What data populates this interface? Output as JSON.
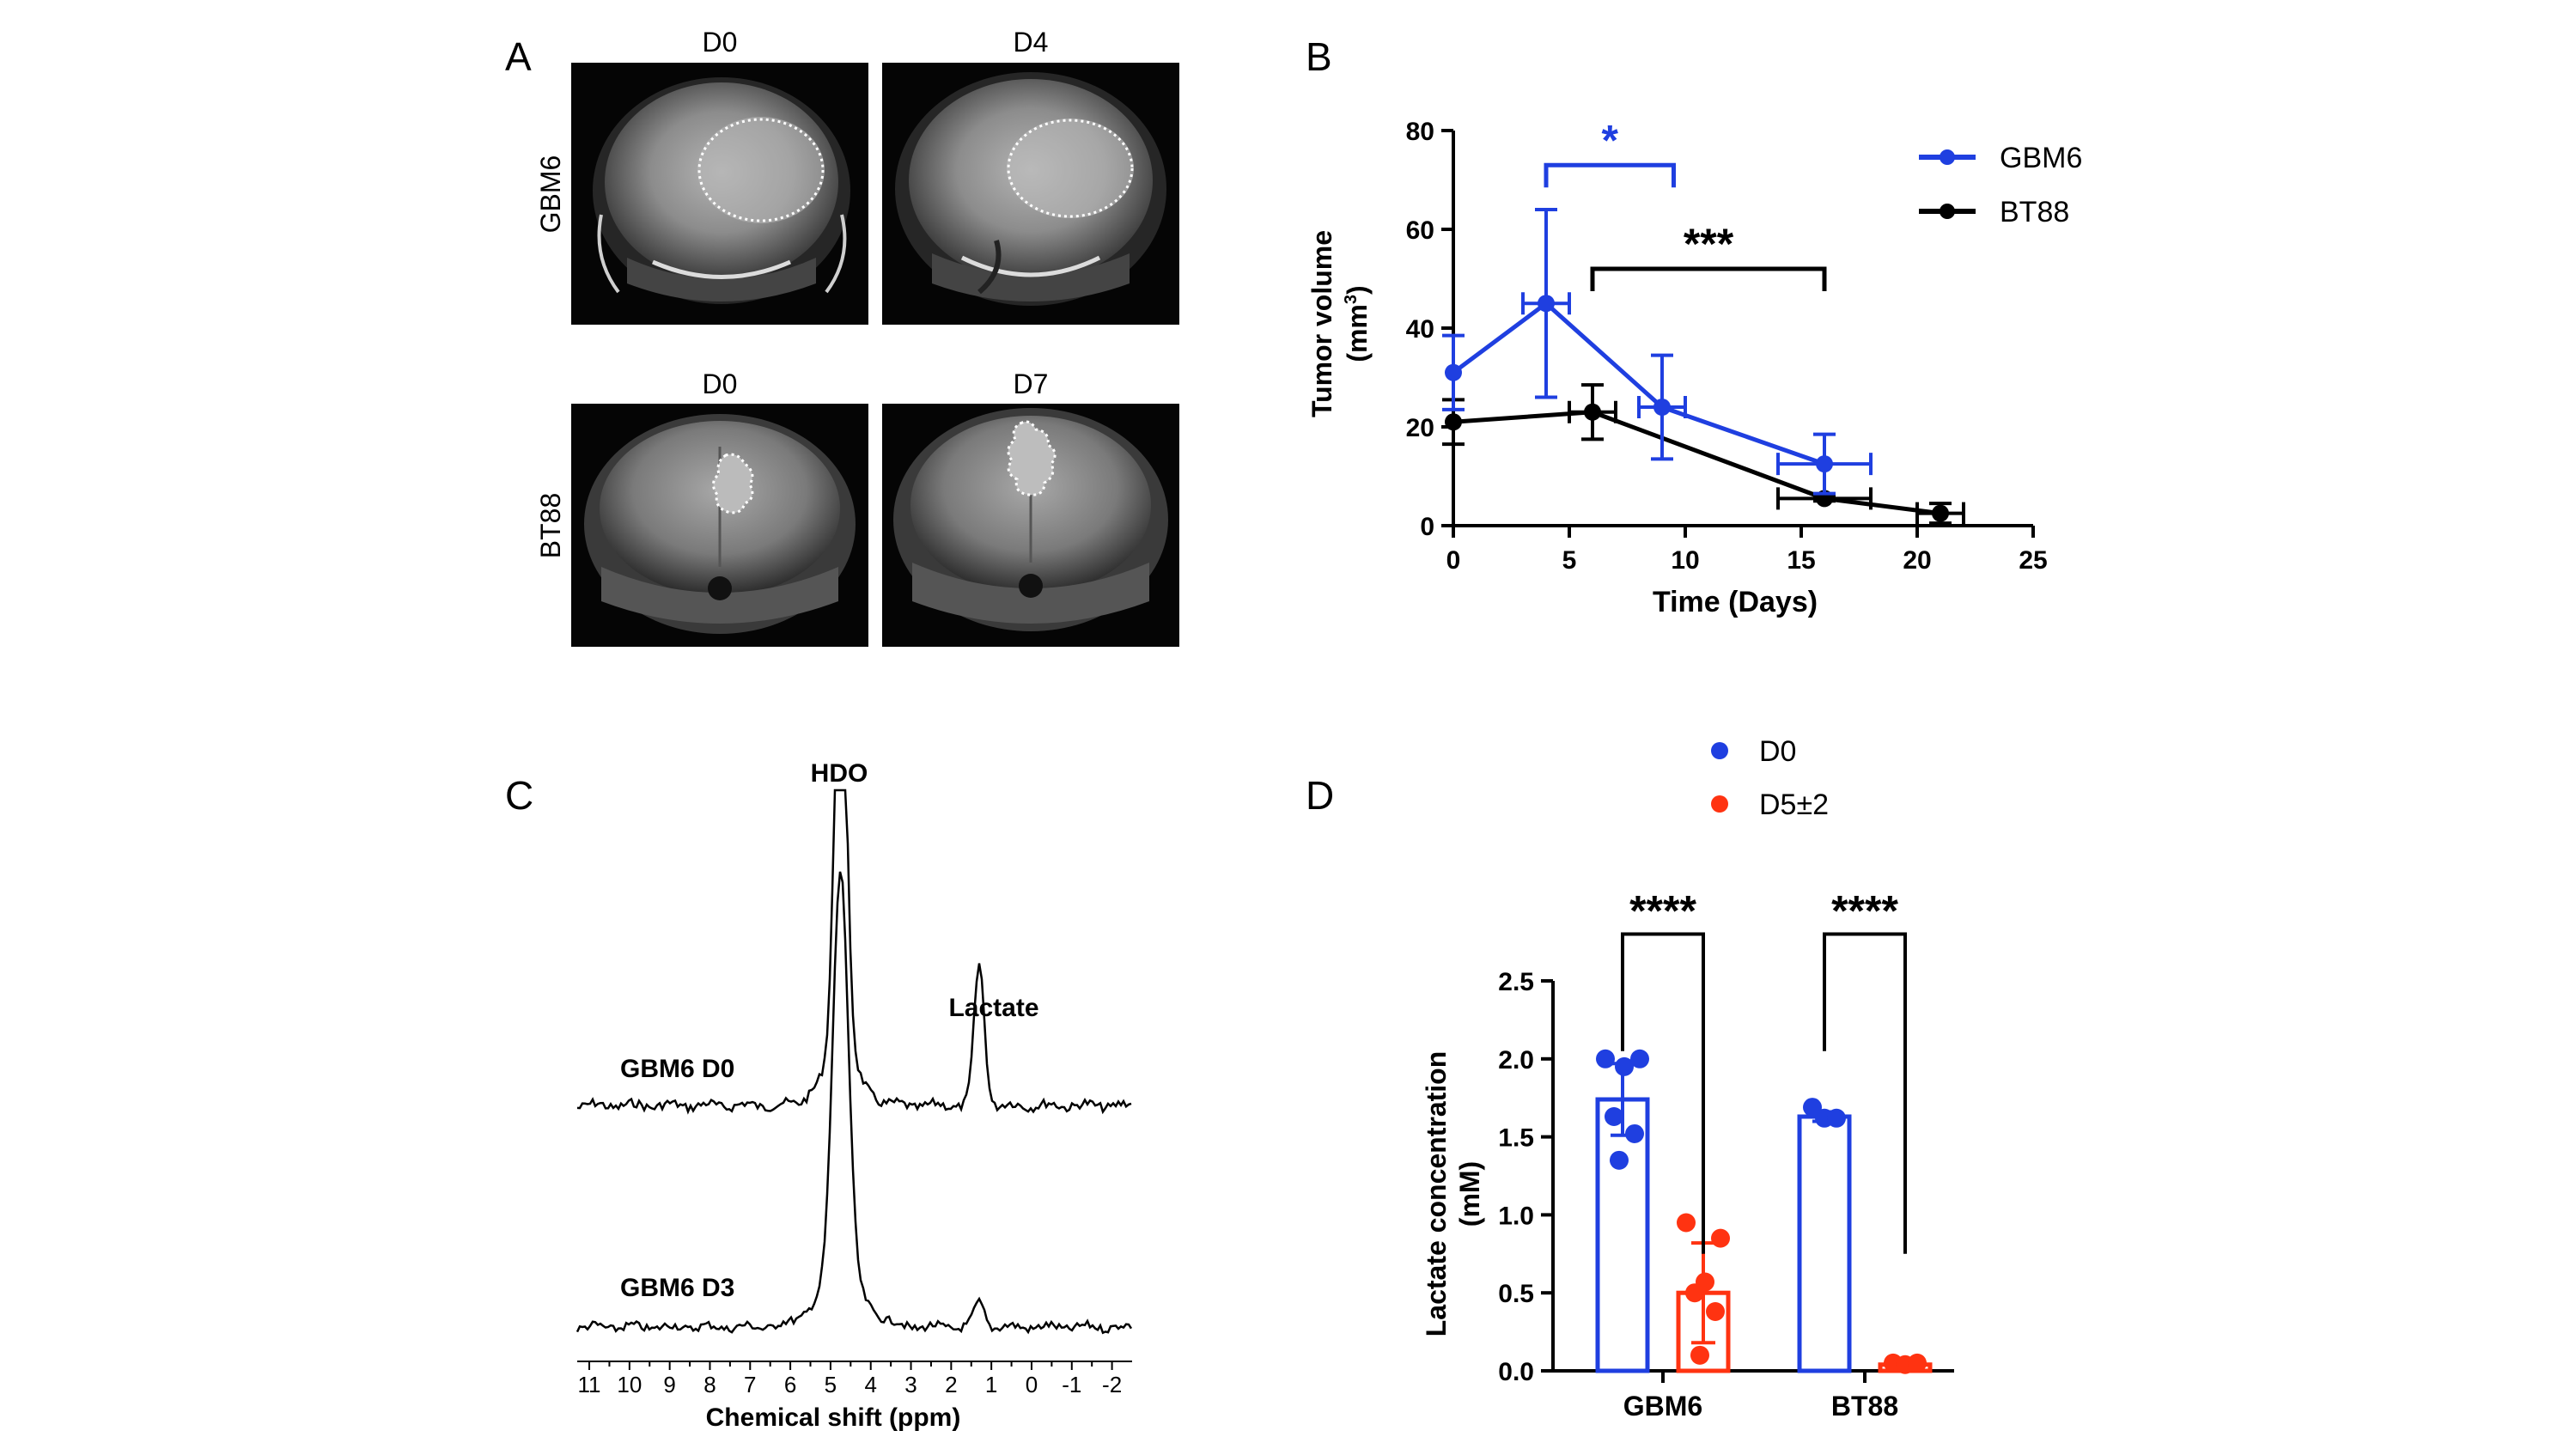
{
  "panel_letters": {
    "a": "A",
    "b": "B",
    "c": "C",
    "d": "D"
  },
  "panel_a": {
    "rows": [
      {
        "label": "GBM6",
        "left_day": "D0",
        "right_day": "D4"
      },
      {
        "label": "BT88",
        "left_day": "D0",
        "right_day": "D7"
      }
    ]
  },
  "chart_data": [
    {
      "id": "tumor_volume",
      "type": "line",
      "title": "",
      "xlabel": "Time (Days)",
      "ylabel_line1": "Tumor volume",
      "ylabel_line2": "(mm",
      "ylabel_sup": "3",
      "ylabel_close": ")",
      "xlim": [
        0,
        25
      ],
      "ylim": [
        0,
        80
      ],
      "xticks": [
        0,
        5,
        10,
        15,
        20,
        25
      ],
      "yticks": [
        0,
        20,
        40,
        60,
        80
      ],
      "legend_position": "top-right",
      "series": [
        {
          "name": "GBM6",
          "color": "#1f3fe0",
          "x": [
            0,
            4,
            9,
            16
          ],
          "y": [
            31,
            45,
            24,
            12.5
          ],
          "xerr": [
            0,
            1,
            1,
            2
          ],
          "yerr": [
            7.5,
            19,
            10.5,
            6
          ]
        },
        {
          "name": "BT88",
          "color": "#000000",
          "x": [
            0,
            6,
            16,
            21
          ],
          "y": [
            21,
            23,
            5.5,
            2.5
          ],
          "xerr": [
            0,
            1,
            2,
            1
          ],
          "yerr": [
            4.5,
            5.5,
            0.5,
            2
          ]
        }
      ],
      "significance": [
        {
          "label": "*",
          "x1": 4,
          "x2": 9.5,
          "y": 73,
          "color": "#1f3fe0"
        },
        {
          "label": "***",
          "x1": 6,
          "x2": 16,
          "y": 52,
          "color": "#000000"
        }
      ]
    },
    {
      "id": "spectra",
      "type": "line",
      "xlabel": "Chemical shift (ppm)",
      "xticks": [
        "11",
        "10",
        "9",
        "8",
        "7",
        "6",
        "5",
        "4",
        "3",
        "2",
        "1",
        "0",
        "-1",
        "-2"
      ],
      "xlim": [
        11.3,
        -2.5
      ],
      "peaks": [
        {
          "label": "HDO",
          "ppm": 4.75
        },
        {
          "label": "Lactate",
          "ppm": 1.3
        }
      ],
      "series": [
        {
          "name": "GBM6 D0",
          "hdo_height": 1.0,
          "lactate_height": 0.33
        },
        {
          "name": "GBM6 D3",
          "hdo_height": 0.9,
          "lactate_height": 0.1
        }
      ]
    },
    {
      "id": "lactate",
      "type": "bar",
      "ylabel_line1": "Lactate concentration",
      "ylabel_line2": "(mM)",
      "ylim": [
        0,
        2.5
      ],
      "yticks": [
        "0.0",
        "0.5",
        "1.0",
        "1.5",
        "2.0",
        "2.5"
      ],
      "categories": [
        "GBM6",
        "BT88"
      ],
      "legend_position": "top",
      "series": [
        {
          "name": "D0",
          "color": "#1f3fe0",
          "values": [
            1.74,
            1.63
          ],
          "sd": [
            0.23,
            0.03
          ],
          "points": [
            [
              2.0,
              2.0,
              1.95,
              1.63,
              1.52,
              1.35
            ],
            [
              1.69,
              1.62,
              1.62
            ]
          ]
        },
        {
          "name": "D5±2",
          "color": "#ff3311",
          "values": [
            0.5,
            0.04
          ],
          "sd": [
            0.32,
            0.01
          ],
          "points": [
            [
              0.95,
              0.85,
              0.57,
              0.5,
              0.38,
              0.1
            ],
            [
              0.05,
              0.04,
              0.05
            ]
          ]
        }
      ],
      "significance": [
        {
          "label": "****",
          "category": 0,
          "y": 2.8
        },
        {
          "label": "****",
          "category": 1,
          "y": 2.8
        }
      ]
    }
  ]
}
